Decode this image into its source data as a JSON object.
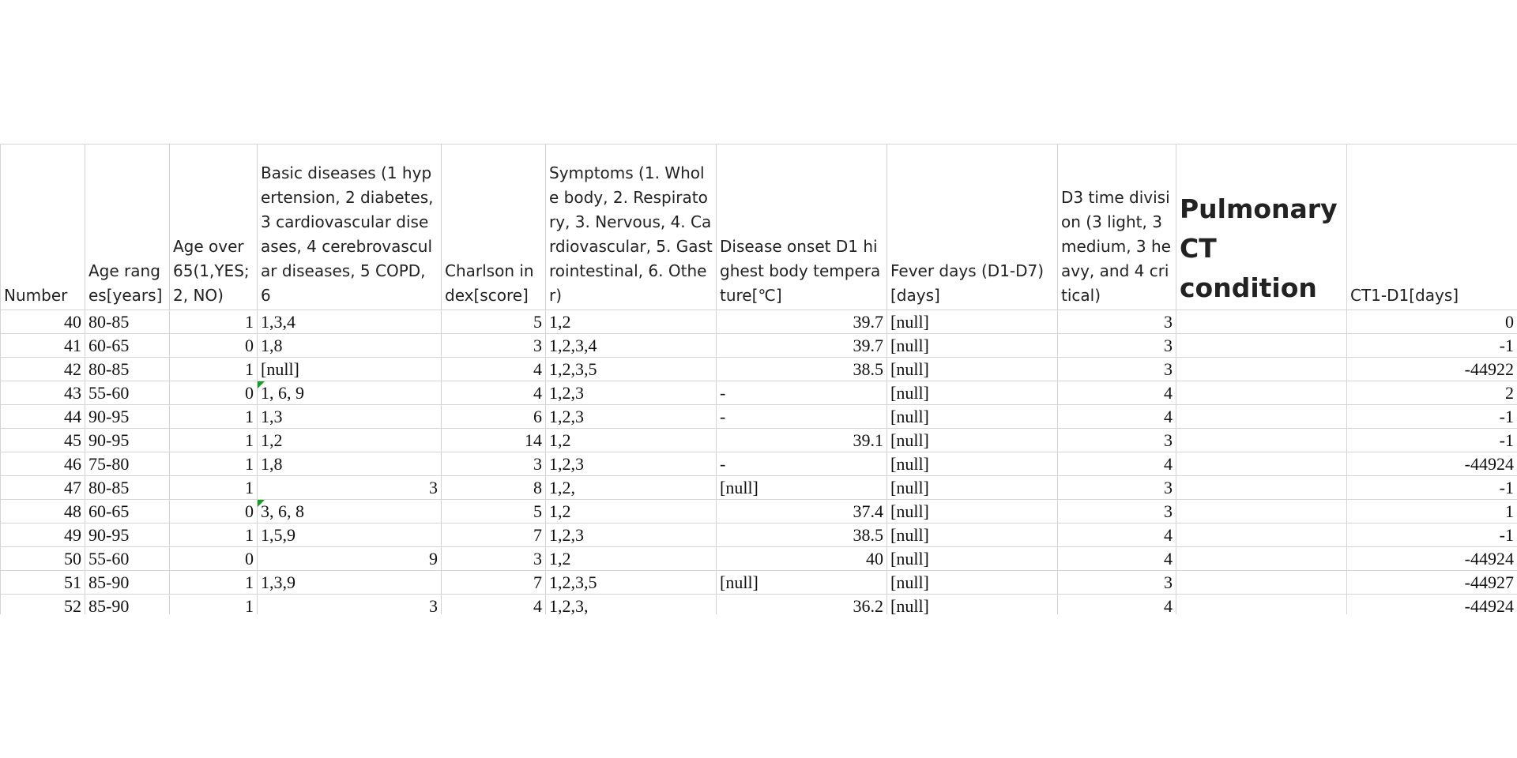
{
  "columns": [
    "Number",
    "Age ranges[years]",
    "Age over 65(1,YES; 2, NO)",
    "Basic diseases (1 hypertension, 2 diabetes, 3 cardiovascular diseases, 4 cerebrovascular diseases, 5 COPD, 6",
    "Charlson index[score]",
    "Symptoms (1. Whole body, 2. Respiratory, 3. Nervous, 4. Cardiovascular, 5. Gastrointestinal, 6. Other)",
    "Disease onset D1 highest body temperature[℃]",
    "Fever days (D1-D7)[days]",
    "D3 time division (3 light, 3 medium, 3 heavy, and 4 critical)",
    "Pulmonary CT condition",
    "CT1-D1[days]"
  ],
  "rows": [
    {
      "num": "40",
      "age": "80-85",
      "over65": "1",
      "basic": "1,3,4",
      "basic_num": "",
      "charlson": "5",
      "symptoms": "1,2",
      "temp": "39.7",
      "temp_text": "",
      "fever": "[null]",
      "d3": "3",
      "ct": "",
      "ct1": "0",
      "flag": false
    },
    {
      "num": "41",
      "age": "60-65",
      "over65": "0",
      "basic": "1,8",
      "basic_num": "",
      "charlson": "3",
      "symptoms": "1,2,3,4",
      "temp": "39.7",
      "temp_text": "",
      "fever": "[null]",
      "d3": "3",
      "ct": "",
      "ct1": "-1",
      "flag": false
    },
    {
      "num": "42",
      "age": "80-85",
      "over65": "1",
      "basic": "[null]",
      "basic_num": "",
      "charlson": "4",
      "symptoms": "1,2,3,5",
      "temp": "38.5",
      "temp_text": "",
      "fever": "[null]",
      "d3": "3",
      "ct": "",
      "ct1": "-44922",
      "flag": false
    },
    {
      "num": "43",
      "age": "55-60",
      "over65": "0",
      "basic": "1, 6, 9",
      "basic_num": "",
      "charlson": "4",
      "symptoms": "1,2,3",
      "temp": "",
      "temp_text": "-",
      "fever": "[null]",
      "d3": "4",
      "ct": "",
      "ct1": "2",
      "flag": true
    },
    {
      "num": "44",
      "age": "90-95",
      "over65": "1",
      "basic": "1,3",
      "basic_num": "",
      "charlson": "6",
      "symptoms": "1,2,3",
      "temp": "",
      "temp_text": "-",
      "fever": "[null]",
      "d3": "4",
      "ct": "",
      "ct1": "-1",
      "flag": false
    },
    {
      "num": "45",
      "age": "90-95",
      "over65": "1",
      "basic": "1,2",
      "basic_num": "",
      "charlson": "14",
      "symptoms": "1,2",
      "temp": "39.1",
      "temp_text": "",
      "fever": "[null]",
      "d3": "3",
      "ct": "",
      "ct1": "-1",
      "flag": false
    },
    {
      "num": "46",
      "age": "75-80",
      "over65": "1",
      "basic": "1,8",
      "basic_num": "",
      "charlson": "3",
      "symptoms": "1,2,3",
      "temp": "",
      "temp_text": "-",
      "fever": "[null]",
      "d3": "4",
      "ct": "",
      "ct1": "-44924",
      "flag": false
    },
    {
      "num": "47",
      "age": "80-85",
      "over65": "1",
      "basic": "",
      "basic_num": "3",
      "charlson": "8",
      "symptoms": "1,2,",
      "temp": "",
      "temp_text": "[null]",
      "fever": "[null]",
      "d3": "3",
      "ct": "",
      "ct1": "-1",
      "flag": false
    },
    {
      "num": "48",
      "age": "60-65",
      "over65": "0",
      "basic": "3, 6, 8",
      "basic_num": "",
      "charlson": "5",
      "symptoms": "1,2",
      "temp": "37.4",
      "temp_text": "",
      "fever": "[null]",
      "d3": "3",
      "ct": "",
      "ct1": "1",
      "flag": true
    },
    {
      "num": "49",
      "age": "90-95",
      "over65": "1",
      "basic": "1,5,9",
      "basic_num": "",
      "charlson": "7",
      "symptoms": "1,2,3",
      "temp": "38.5",
      "temp_text": "",
      "fever": "[null]",
      "d3": "4",
      "ct": "",
      "ct1": "-1",
      "flag": false
    },
    {
      "num": "50",
      "age": "55-60",
      "over65": "0",
      "basic": "",
      "basic_num": "9",
      "charlson": "3",
      "symptoms": "1,2",
      "temp": "40",
      "temp_text": "",
      "fever": "[null]",
      "d3": "4",
      "ct": "",
      "ct1": "-44924",
      "flag": false
    },
    {
      "num": "51",
      "age": "85-90",
      "over65": "1",
      "basic": "1,3,9",
      "basic_num": "",
      "charlson": "7",
      "symptoms": "1,2,3,5",
      "temp": "",
      "temp_text": "[null]",
      "fever": "[null]",
      "d3": "3",
      "ct": "",
      "ct1": "-44927",
      "flag": false
    },
    {
      "num": "52",
      "age": "85-90",
      "over65": "1",
      "basic": "",
      "basic_num": "3",
      "charlson": "4",
      "symptoms": "1,2,3,",
      "temp": "36.2",
      "temp_text": "",
      "fever": "[null]",
      "d3": "4",
      "ct": "",
      "ct1": "-44924",
      "flag": false
    }
  ]
}
